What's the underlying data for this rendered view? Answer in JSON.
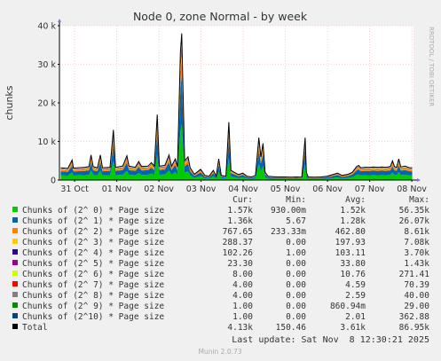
{
  "chart_data": {
    "type": "area",
    "title": "Node 0, zone Normal - by week",
    "ylabel": "chunks",
    "side_label": "RRDTOOL / TOBI OETIKER",
    "ylim": [
      0,
      40000
    ],
    "yticks": [
      0,
      10000,
      20000,
      30000,
      40000
    ],
    "ytick_labels": [
      "0",
      "10 k",
      "20 k",
      "30 k",
      "40 k"
    ],
    "xlim": [
      0,
      8.4
    ],
    "x_ticks": [
      0.36,
      1.36,
      2.36,
      3.36,
      4.36,
      5.36,
      6.36,
      7.36,
      8.36
    ],
    "x_tick_labels": [
      "31 Oct",
      "01 Nov",
      "02 Nov",
      "03 Nov",
      "04 Nov",
      "05 Nov",
      "06 Nov",
      "07 Nov",
      "08 Nov"
    ],
    "total_points": [
      [
        0.03,
        3200
      ],
      [
        0.2,
        3000
      ],
      [
        0.3,
        5200
      ],
      [
        0.33,
        3100
      ],
      [
        0.6,
        3300
      ],
      [
        0.7,
        3500
      ],
      [
        0.75,
        6500
      ],
      [
        0.8,
        3500
      ],
      [
        0.9,
        3200
      ],
      [
        0.97,
        6500
      ],
      [
        1.02,
        3200
      ],
      [
        1.2,
        3300
      ],
      [
        1.28,
        13000
      ],
      [
        1.33,
        3300
      ],
      [
        1.5,
        3600
      ],
      [
        1.6,
        6300
      ],
      [
        1.65,
        3600
      ],
      [
        1.8,
        3300
      ],
      [
        1.88,
        4800
      ],
      [
        1.95,
        3500
      ],
      [
        2.1,
        3600
      ],
      [
        2.18,
        4500
      ],
      [
        2.25,
        3600
      ],
      [
        2.32,
        17000
      ],
      [
        2.37,
        3600
      ],
      [
        2.5,
        3800
      ],
      [
        2.6,
        6500
      ],
      [
        2.66,
        3600
      ],
      [
        2.75,
        5500
      ],
      [
        2.8,
        3400
      ],
      [
        2.87,
        33000
      ],
      [
        2.9,
        38000
      ],
      [
        2.93,
        24000
      ],
      [
        2.97,
        5000
      ],
      [
        3.05,
        6000
      ],
      [
        3.1,
        3200
      ],
      [
        3.2,
        1500
      ],
      [
        3.35,
        2800
      ],
      [
        3.45,
        1200
      ],
      [
        3.55,
        1000
      ],
      [
        3.65,
        2500
      ],
      [
        3.72,
        1000
      ],
      [
        3.78,
        5500
      ],
      [
        3.84,
        1200
      ],
      [
        3.95,
        1000
      ],
      [
        4.02,
        15000
      ],
      [
        4.07,
        2500
      ],
      [
        4.15,
        2000
      ],
      [
        4.25,
        1400
      ],
      [
        4.35,
        1800
      ],
      [
        4.45,
        1000
      ],
      [
        4.55,
        800
      ],
      [
        4.65,
        1200
      ],
      [
        4.73,
        11000
      ],
      [
        4.78,
        6000
      ],
      [
        4.83,
        9500
      ],
      [
        4.88,
        2000
      ],
      [
        4.95,
        1000
      ],
      [
        5.05,
        900
      ],
      [
        5.2,
        800
      ],
      [
        5.35,
        800
      ],
      [
        5.5,
        750
      ],
      [
        5.62,
        800
      ],
      [
        5.75,
        750
      ],
      [
        5.83,
        11000
      ],
      [
        5.86,
        2000
      ],
      [
        5.9,
        800
      ],
      [
        6.05,
        750
      ],
      [
        6.2,
        800
      ],
      [
        6.35,
        1000
      ],
      [
        6.6,
        1800
      ],
      [
        6.7,
        1200
      ],
      [
        6.85,
        1500
      ],
      [
        6.95,
        2000
      ],
      [
        7.05,
        3500
      ],
      [
        7.1,
        3800
      ],
      [
        7.15,
        3200
      ],
      [
        7.25,
        3300
      ],
      [
        7.35,
        3300
      ],
      [
        7.45,
        3400
      ],
      [
        7.55,
        3300
      ],
      [
        7.65,
        3400
      ],
      [
        7.75,
        3300
      ],
      [
        7.85,
        3500
      ],
      [
        7.9,
        5000
      ],
      [
        7.95,
        3500
      ],
      [
        8.0,
        3300
      ],
      [
        8.05,
        5500
      ],
      [
        8.1,
        3400
      ],
      [
        8.2,
        3600
      ],
      [
        8.3,
        3200
      ],
      [
        8.37,
        3200
      ]
    ],
    "series": [
      {
        "name": "Chunks of (2^ 0) * Page size",
        "color": "#00cc00",
        "cur": "1.57k",
        "min": "930.00m",
        "avg": "1.52k",
        "max": "56.35k",
        "share": 0.38
      },
      {
        "name": "Chunks of (2^ 1) * Page size",
        "color": "#0066b3",
        "cur": "1.36k",
        "min": "5.67",
        "avg": "1.28k",
        "max": "26.07k",
        "share": 0.33
      },
      {
        "name": "Chunks of (2^ 2) * Page size",
        "color": "#ff8000",
        "cur": "767.65",
        "min": "233.33m",
        "avg": "462.80",
        "max": "8.61k",
        "share": 0.12
      },
      {
        "name": "Chunks of (2^ 3) * Page size",
        "color": "#ffcc00",
        "cur": "288.37",
        "min": "0.00",
        "avg": "197.93",
        "max": "7.08k",
        "share": 0.05
      },
      {
        "name": "Chunks of (2^ 4) * Page size",
        "color": "#330099",
        "cur": "102.26",
        "min": "1.00",
        "avg": "103.11",
        "max": "3.70k",
        "share": 0.03
      },
      {
        "name": "Chunks of (2^ 5) * Page size",
        "color": "#990099",
        "cur": "23.30",
        "min": "0.00",
        "avg": "33.80",
        "max": "1.43k",
        "share": 0.01
      },
      {
        "name": "Chunks of (2^ 6) * Page size",
        "color": "#ccff00",
        "cur": "8.00",
        "min": "0.00",
        "avg": "10.76",
        "max": "271.41",
        "share": 0.005
      },
      {
        "name": "Chunks of (2^ 7) * Page size",
        "color": "#ff0000",
        "cur": "4.00",
        "min": "0.00",
        "avg": "4.59",
        "max": "70.39",
        "share": 0.003
      },
      {
        "name": "Chunks of (2^ 8) * Page size",
        "color": "#808080",
        "cur": "4.00",
        "min": "0.00",
        "avg": "2.59",
        "max": "40.00",
        "share": 0.002
      },
      {
        "name": "Chunks of (2^ 9) * Page size",
        "color": "#008f00",
        "cur": "1.00",
        "min": "0.00",
        "avg": "860.94m",
        "max": "29.00",
        "share": 0.001
      },
      {
        "name": "Chunks of (2^10) * Page size",
        "color": "#00487d",
        "cur": "1.00",
        "min": "0.00",
        "avg": "2.01",
        "max": "362.88",
        "share": 0.001
      }
    ],
    "total": {
      "name": "Total",
      "color": "#000000",
      "cur": "4.13k",
      "min": "150.46",
      "avg": "3.61k",
      "max": "86.95k"
    },
    "legend_headers": {
      "cur": "Cur:",
      "min": "Min:",
      "avg": "Avg:",
      "max": "Max:"
    },
    "last_update": "Last update: Sat Nov  8 12:30:21 2025",
    "footer": "Munin 2.0.73",
    "colors": {
      "background": "#f0f0f0",
      "plot_background": "#ffffff",
      "grid": "#ffaaaa",
      "axis": "#000000"
    }
  }
}
